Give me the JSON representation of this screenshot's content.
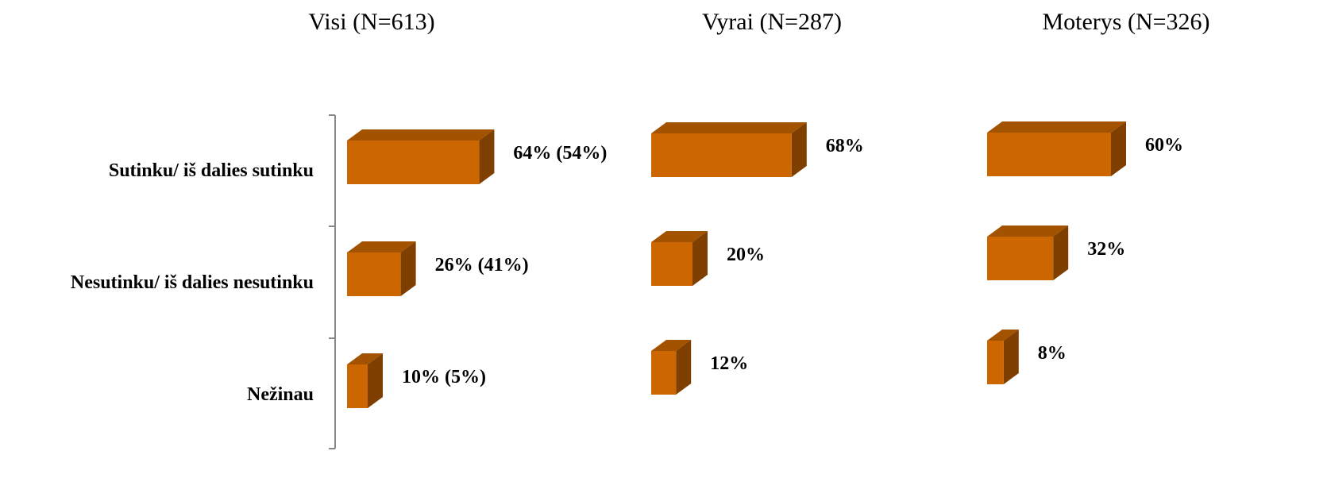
{
  "chart_data": [
    {
      "type": "bar",
      "orientation": "horizontal",
      "title": "Visi (N=613)",
      "categories": [
        "Sutinku/ iš dalies sutinku",
        "Nesutinku/ iš dalies nesutinku",
        "Nežinau"
      ],
      "values": [
        64,
        26,
        10
      ],
      "value_labels": [
        "64% (54%)",
        "26% (41%)",
        "10% (5%)"
      ],
      "color": "#cc6600"
    },
    {
      "type": "bar",
      "orientation": "horizontal",
      "title": "Vyrai (N=287)",
      "values": [
        68,
        20,
        12
      ],
      "value_labels": [
        "68%",
        "20%",
        "12%"
      ],
      "color": "#cc6600"
    },
    {
      "type": "bar",
      "orientation": "horizontal",
      "title": "Moterys (N=326)",
      "values": [
        60,
        32,
        8
      ],
      "value_labels": [
        "60%",
        "32%",
        "8%"
      ],
      "color": "#cc6600"
    }
  ]
}
